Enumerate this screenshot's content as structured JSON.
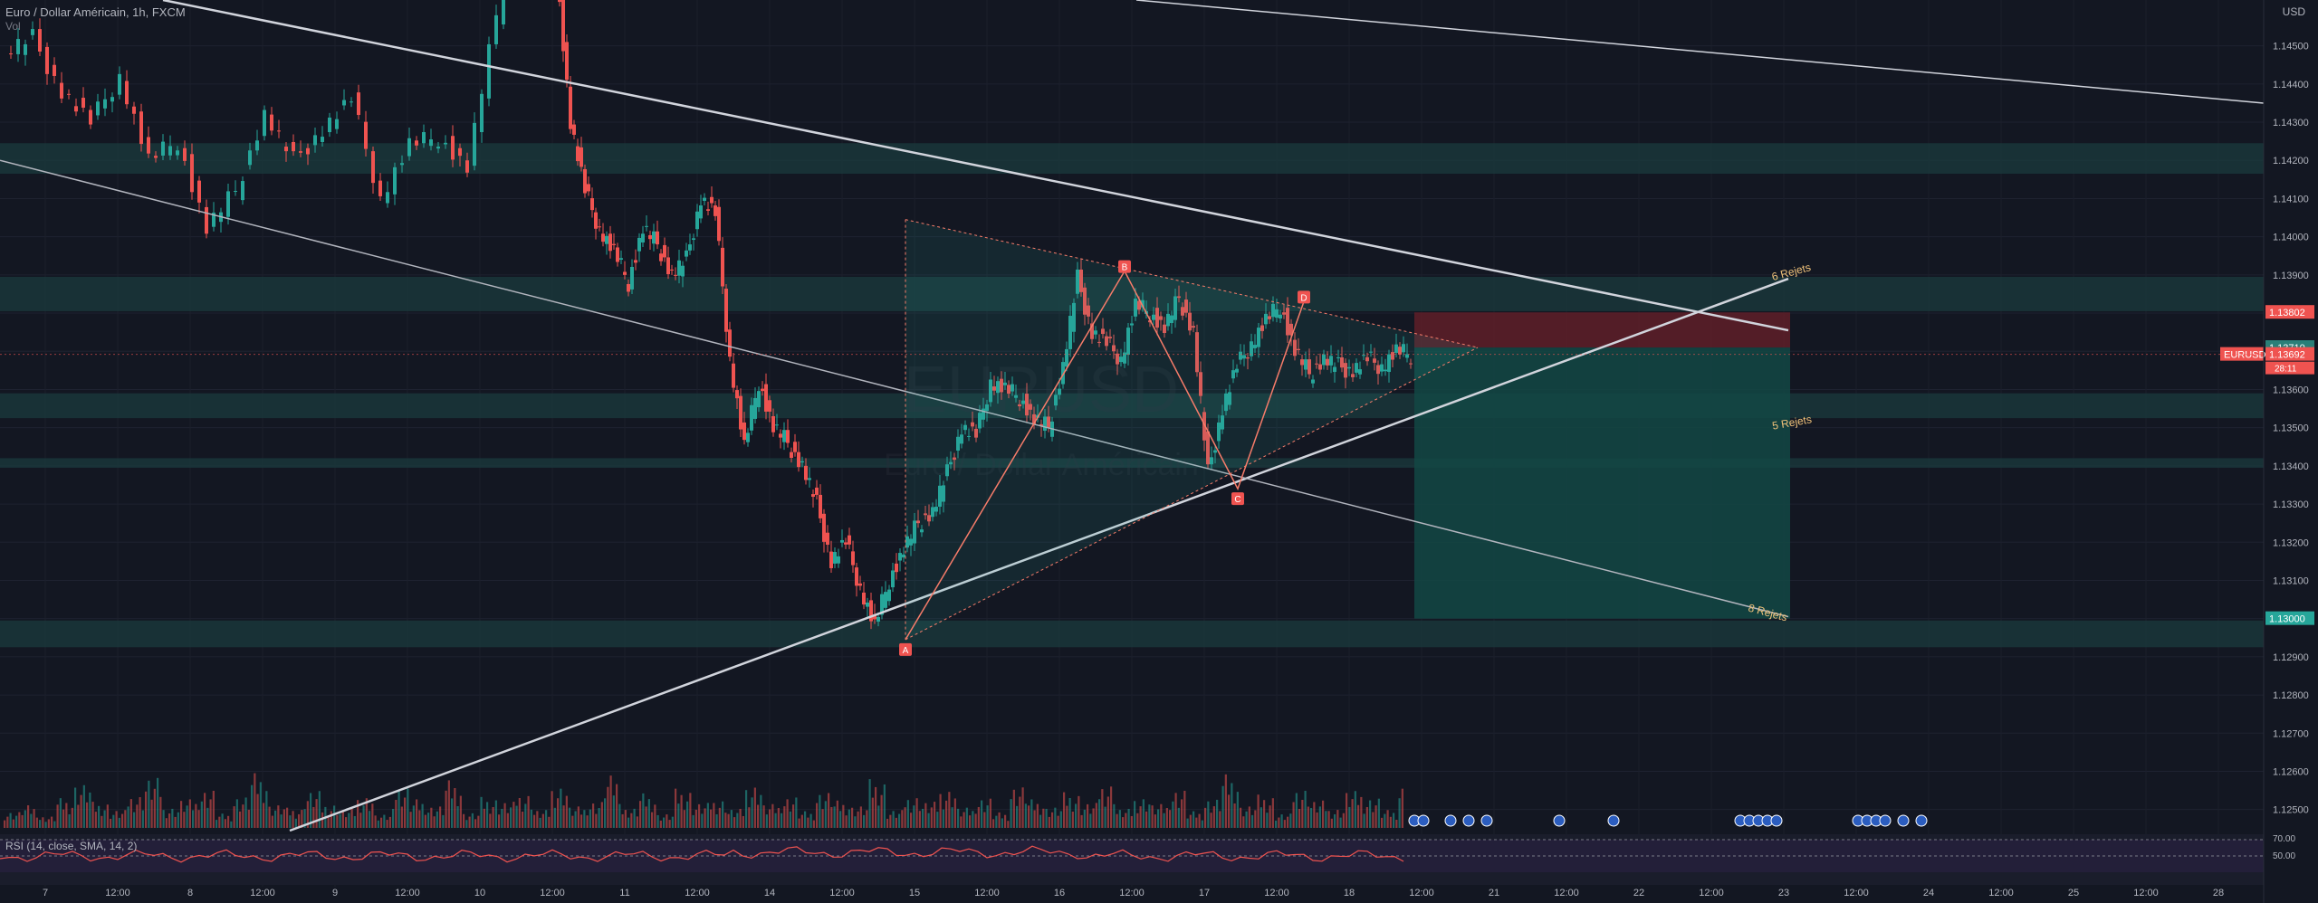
{
  "header": {
    "symbol_title": "Euro / Dollar Américain, 1h, FXCM",
    "sub_label": "Vol",
    "currency": "USD"
  },
  "rsi": {
    "label": "RSI (14, close, SMA, 14, 2)",
    "levels": [
      "70.00",
      "50.00"
    ]
  },
  "watermark": {
    "ticker": "EURUSD",
    "name": "Euro / Dollar Américain"
  },
  "price_tags": {
    "target_high": "1.13802",
    "current_1": "1.13710",
    "current_2": "1.13692",
    "symbol": "EURUSD",
    "countdown": "28:11",
    "target_low": "1.13000"
  },
  "annotations": {
    "rejets_6": "6 Rejets",
    "rejets_5": "5 Rejets",
    "rejets_8": "8 Rejets",
    "point_a": "A",
    "point_b": "B",
    "point_c": "C",
    "point_d": "D"
  },
  "colors": {
    "background": "#131722",
    "bull": "#26a69a",
    "bear": "#ef5350",
    "zone": "#1b3b3e",
    "short_stop": "#5b1e28",
    "short_target": "#134844",
    "rsi_line": "#ef5350"
  },
  "chart_data": {
    "type": "candlestick",
    "symbol": "EURUSD",
    "interval": "1h",
    "y_axis": {
      "range": [
        1.1244,
        1.1462
      ],
      "ticks": [
        "1.14500",
        "1.14400",
        "1.14300",
        "1.14200",
        "1.14100",
        "1.14000",
        "1.13900",
        "1.13800",
        "1.13700",
        "1.13600",
        "1.13500",
        "1.13400",
        "1.13300",
        "1.13200",
        "1.13100",
        "1.13000",
        "1.12900",
        "1.12800",
        "1.12700",
        "1.12600",
        "1.12500"
      ]
    },
    "x_axis": {
      "ticks": [
        "7",
        "12:00",
        "8",
        "12:00",
        "9",
        "12:00",
        "10",
        "12:00",
        "11",
        "12:00",
        "14",
        "12:00",
        "15",
        "12:00",
        "16",
        "12:00",
        "17",
        "12:00",
        "18",
        "12:00",
        "21",
        "12:00",
        "22",
        "12:00",
        "23",
        "12:00",
        "24",
        "12:00",
        "25",
        "12:00",
        "28"
      ]
    },
    "price_path": [
      [
        0,
        1.1448
      ],
      [
        10,
        1.1452
      ],
      [
        20,
        1.1438
      ],
      [
        30,
        1.143
      ],
      [
        40,
        1.1442
      ],
      [
        50,
        1.142
      ],
      [
        60,
        1.1425
      ],
      [
        70,
        1.1402
      ],
      [
        80,
        1.1412
      ],
      [
        90,
        1.1432
      ],
      [
        100,
        1.142
      ],
      [
        110,
        1.1428
      ],
      [
        120,
        1.1436
      ],
      [
        130,
        1.141
      ],
      [
        140,
        1.1424
      ],
      [
        150,
        1.1426
      ],
      [
        160,
        1.1418
      ],
      [
        170,
        1.1458
      ],
      [
        180,
        1.1485
      ],
      [
        190,
        1.1472
      ],
      [
        195,
        1.143
      ],
      [
        200,
        1.1412
      ],
      [
        205,
        1.1402
      ],
      [
        210,
        1.1396
      ],
      [
        215,
        1.1388
      ],
      [
        220,
        1.1402
      ],
      [
        225,
        1.1398
      ],
      [
        230,
        1.139
      ],
      [
        235,
        1.1394
      ],
      [
        240,
        1.141
      ],
      [
        245,
        1.1406
      ],
      [
        250,
        1.1368
      ],
      [
        255,
        1.1345
      ],
      [
        260,
        1.1362
      ],
      [
        265,
        1.135
      ],
      [
        270,
        1.1346
      ],
      [
        275,
        1.134
      ],
      [
        280,
        1.133
      ],
      [
        285,
        1.1315
      ],
      [
        290,
        1.132
      ],
      [
        295,
        1.1308
      ],
      [
        300,
        1.1298
      ],
      [
        305,
        1.131
      ],
      [
        310,
        1.1318
      ],
      [
        315,
        1.1325
      ],
      [
        320,
        1.1328
      ],
      [
        325,
        1.1338
      ],
      [
        330,
        1.135
      ],
      [
        335,
        1.1348
      ],
      [
        340,
        1.1362
      ],
      [
        345,
        1.136
      ],
      [
        350,
        1.1358
      ],
      [
        355,
        1.1352
      ],
      [
        360,
        1.135
      ],
      [
        365,
        1.1366
      ],
      [
        370,
        1.1389
      ],
      [
        375,
        1.1375
      ],
      [
        380,
        1.1372
      ],
      [
        385,
        1.1368
      ],
      [
        390,
        1.1382
      ],
      [
        395,
        1.138
      ],
      [
        400,
        1.1376
      ],
      [
        405,
        1.1384
      ],
      [
        410,
        1.1375
      ],
      [
        415,
        1.1338
      ],
      [
        420,
        1.1355
      ],
      [
        425,
        1.1366
      ],
      [
        430,
        1.1372
      ],
      [
        435,
        1.1378
      ],
      [
        440,
        1.1382
      ],
      [
        445,
        1.137
      ],
      [
        450,
        1.1364
      ],
      [
        455,
        1.1368
      ],
      [
        460,
        1.1366
      ],
      [
        465,
        1.1365
      ],
      [
        470,
        1.1368
      ],
      [
        475,
        1.1366
      ],
      [
        480,
        1.137
      ],
      [
        485,
        1.1369
      ]
    ],
    "volume": [
      14,
      19,
      10,
      25,
      38,
      22,
      15,
      29,
      42,
      18,
      24,
      33,
      12,
      27,
      46,
      20,
      17,
      31,
      21,
      16,
      28,
      11,
      35,
      24,
      19,
      40,
      13,
      26,
      22,
      30,
      15,
      37,
      18,
      23,
      44,
      17,
      29,
      12,
      33,
      21,
      25,
      16,
      38,
      20,
      27,
      14,
      31,
      23,
      19,
      41,
      15,
      28,
      22,
      34,
      17,
      26,
      13,
      36,
      24,
      18,
      30,
      21,
      39,
      16,
      27,
      20,
      33,
      14,
      25,
      45,
      19,
      28,
      12,
      35,
      23,
      17,
      31,
      26,
      15,
      37
    ],
    "zones": [
      {
        "from": 1.14165,
        "to": 1.14245
      },
      {
        "from": 1.13805,
        "to": 1.13895
      },
      {
        "from": 1.13525,
        "to": 1.1359
      },
      {
        "from": 1.13395,
        "to": 1.1342
      },
      {
        "from": 1.12925,
        "to": 1.12995
      }
    ],
    "pattern_points": [
      {
        "label": "A",
        "price": 1.12945
      },
      {
        "label": "B",
        "price": 1.1391
      },
      {
        "label": "C",
        "price": 1.1334
      },
      {
        "label": "D",
        "price": 1.1383
      }
    ],
    "short_position": {
      "stop": 1.13802,
      "entry": 1.1371,
      "target": 1.13
    },
    "rsi_levels": [
      70,
      50
    ],
    "grid": true
  }
}
